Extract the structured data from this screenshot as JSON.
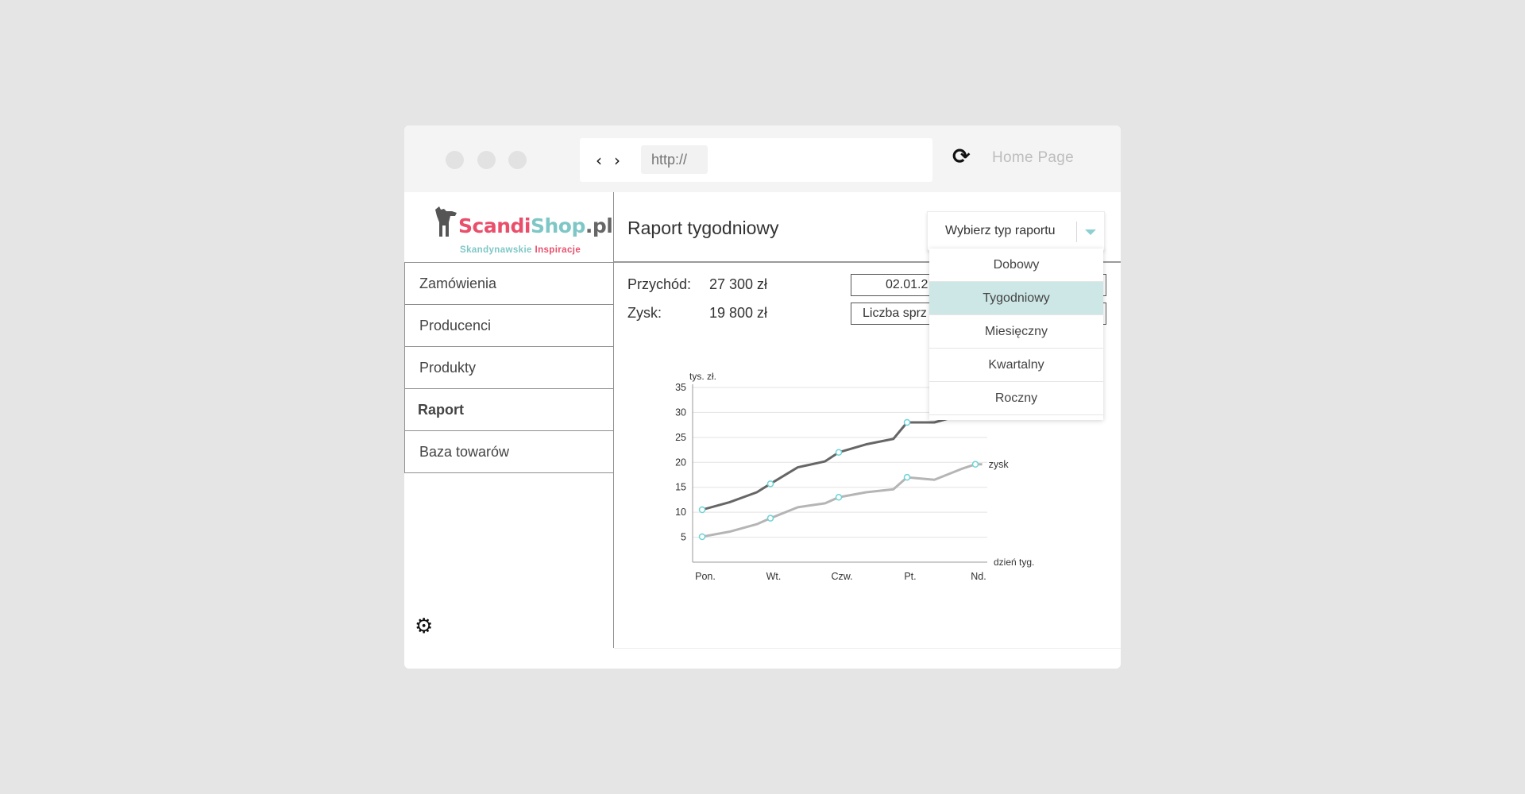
{
  "browser": {
    "url_placeholder": "http://",
    "home_label": "Home Page"
  },
  "logo": {
    "brand_part1": "Scandi",
    "brand_part2": "Shop",
    "brand_part3": ".pl",
    "tagline_part1": "Skandynawskie",
    "tagline_part2": "Inspiracje"
  },
  "sidebar": {
    "items": [
      {
        "label": "Zamówienia"
      },
      {
        "label": "Producenci"
      },
      {
        "label": "Produkty"
      },
      {
        "label": "Raport"
      },
      {
        "label": "Baza towarów"
      }
    ]
  },
  "report": {
    "title": "Raport tygodniowy",
    "select_label": "Wybierz typ raportu",
    "revenue_label": "Przychód:",
    "revenue_value": "27 300 zł",
    "profit_label": "Zysk:",
    "profit_value": "19 800 zł",
    "date_field": "02.01.2",
    "metric_field": "Liczba sprz"
  },
  "dropdown": {
    "options": [
      "Dobowy",
      "Tygodniowy",
      "Miesięczny",
      "Kwartalny",
      "Roczny"
    ],
    "selected": "Tygodniowy"
  },
  "colors": {
    "brand_red": "#e94f6b",
    "brand_teal": "#7ec7c6",
    "accent": "#cde7e6",
    "revenue_line": "#666666",
    "profit_line": "#b5b5b5",
    "marker": "#6fd3d6"
  },
  "chart_data": {
    "type": "line",
    "ylabel": "tys. zł.",
    "xlabel": "dzień tyg.",
    "ylim": [
      0,
      35
    ],
    "yticks": [
      5,
      10,
      15,
      20,
      25,
      30,
      35
    ],
    "categories": [
      "Pon.",
      "Wt.",
      "Czw.",
      "Pt.",
      "Nd."
    ],
    "grid": true,
    "series": [
      {
        "name": "",
        "x": [
          0,
          0.4,
          0.8,
          1,
          1.4,
          1.8,
          2,
          2.4,
          2.8,
          3,
          3.4,
          3.8,
          4
        ],
        "y": [
          10.5,
          12,
          14,
          15.7,
          19,
          20.2,
          22,
          23.6,
          24.7,
          28,
          28,
          29.5,
          33
        ],
        "markers_at": [
          0,
          1,
          2,
          3
        ]
      },
      {
        "name": "zysk",
        "x": [
          0,
          0.4,
          0.8,
          1,
          1.4,
          1.8,
          2,
          2.4,
          2.8,
          3,
          3.4,
          3.8,
          4,
          4.1
        ],
        "y": [
          5.1,
          6.1,
          7.6,
          8.8,
          11,
          11.8,
          13,
          14,
          14.6,
          17,
          16.5,
          18.7,
          19.6,
          19.6
        ],
        "markers_at": [
          0,
          1,
          2,
          3,
          4
        ]
      }
    ]
  }
}
